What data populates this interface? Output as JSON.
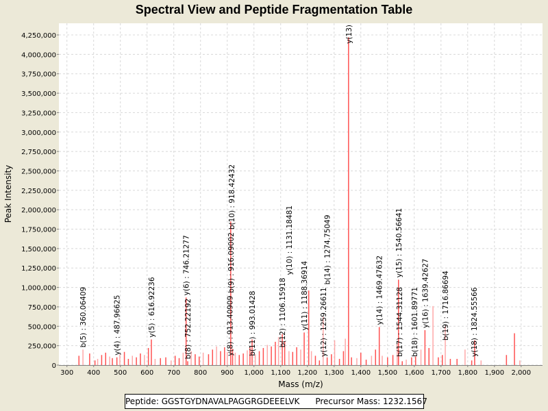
{
  "chart_data": {
    "type": "bar",
    "title": "Spectral View and Peptide Fragmentation Table",
    "xlabel": "Mass (m/z)",
    "ylabel": "Peak Intensity",
    "xlim": [
      270,
      2080
    ],
    "ylim": [
      0,
      4400000
    ],
    "x_ticks": [
      300,
      400,
      500,
      600,
      700,
      800,
      900,
      1000,
      1100,
      1200,
      1300,
      1400,
      1500,
      1600,
      1700,
      1800,
      1900,
      2000
    ],
    "x_tick_labels": [
      "300",
      "400",
      "500",
      "600",
      "700",
      "800",
      "900",
      "1,000",
      "1,100",
      "1,200",
      "1,300",
      "1,400",
      "1,500",
      "1,600",
      "1,700",
      "1,800",
      "1,900",
      "2,000"
    ],
    "y_ticks": [
      0,
      250000,
      500000,
      750000,
      1000000,
      1250000,
      1500000,
      1750000,
      2000000,
      2250000,
      2500000,
      2750000,
      3000000,
      3250000,
      3500000,
      3750000,
      4000000,
      4250000
    ],
    "y_tick_labels": [
      "0",
      "250,000",
      "500,000",
      "750,000",
      "1,000,000",
      "1,250,000",
      "1,500,000",
      "1,750,000",
      "2,000,000",
      "2,250,000",
      "2,500,000",
      "2,750,000",
      "3,000,000",
      "3,250,000",
      "3,500,000",
      "3,750,000",
      "4,000,000",
      "4,250,000"
    ],
    "grid": true,
    "peak_color": "#ff5050",
    "peak_color_light": "#ffa8a8",
    "peaks": [
      [
        345,
        120000
      ],
      [
        360,
        200000
      ],
      [
        385,
        150000
      ],
      [
        405,
        60000
      ],
      [
        415,
        80000
      ],
      [
        430,
        130000
      ],
      [
        445,
        160000
      ],
      [
        460,
        110000
      ],
      [
        470,
        90000
      ],
      [
        487,
        100000
      ],
      [
        498,
        140000
      ],
      [
        515,
        170000
      ],
      [
        530,
        80000
      ],
      [
        545,
        120000
      ],
      [
        560,
        100000
      ],
      [
        575,
        150000
      ],
      [
        590,
        130000
      ],
      [
        605,
        220000
      ],
      [
        616,
        330000
      ],
      [
        630,
        80000
      ],
      [
        650,
        90000
      ],
      [
        670,
        100000
      ],
      [
        690,
        60000
      ],
      [
        705,
        120000
      ],
      [
        720,
        90000
      ],
      [
        735,
        160000
      ],
      [
        746,
        870000
      ],
      [
        752,
        50000
      ],
      [
        765,
        180000
      ],
      [
        780,
        140000
      ],
      [
        795,
        110000
      ],
      [
        810,
        160000
      ],
      [
        830,
        140000
      ],
      [
        845,
        200000
      ],
      [
        860,
        240000
      ],
      [
        875,
        180000
      ],
      [
        890,
        230000
      ],
      [
        900,
        170000
      ],
      [
        913,
        1850000
      ],
      [
        920,
        210000
      ],
      [
        930,
        160000
      ],
      [
        945,
        130000
      ],
      [
        960,
        150000
      ],
      [
        975,
        190000
      ],
      [
        985,
        230000
      ],
      [
        993,
        330000
      ],
      [
        1005,
        140000
      ],
      [
        1020,
        180000
      ],
      [
        1035,
        220000
      ],
      [
        1050,
        260000
      ],
      [
        1065,
        240000
      ],
      [
        1080,
        300000
      ],
      [
        1092,
        360000
      ],
      [
        1106,
        400000
      ],
      [
        1115,
        310000
      ],
      [
        1131,
        180000
      ],
      [
        1145,
        170000
      ],
      [
        1160,
        230000
      ],
      [
        1175,
        200000
      ],
      [
        1188,
        420000
      ],
      [
        1205,
        960000
      ],
      [
        1215,
        180000
      ],
      [
        1230,
        120000
      ],
      [
        1245,
        60000
      ],
      [
        1259,
        620000
      ],
      [
        1274,
        100000
      ],
      [
        1290,
        140000
      ],
      [
        1302,
        320000
      ],
      [
        1320,
        80000
      ],
      [
        1335,
        180000
      ],
      [
        1342,
        340000
      ],
      [
        1354,
        4220000
      ],
      [
        1365,
        100000
      ],
      [
        1385,
        90000
      ],
      [
        1400,
        160000
      ],
      [
        1420,
        70000
      ],
      [
        1440,
        120000
      ],
      [
        1455,
        200000
      ],
      [
        1469,
        490000
      ],
      [
        1480,
        120000
      ],
      [
        1500,
        100000
      ],
      [
        1520,
        130000
      ],
      [
        1536,
        280000
      ],
      [
        1541,
        1100000
      ],
      [
        1555,
        50000
      ],
      [
        1570,
        70000
      ],
      [
        1590,
        100000
      ],
      [
        1605,
        110000
      ],
      [
        1625,
        200000
      ],
      [
        1640,
        450000
      ],
      [
        1655,
        220000
      ],
      [
        1670,
        760000
      ],
      [
        1690,
        100000
      ],
      [
        1705,
        130000
      ],
      [
        1716,
        500000
      ],
      [
        1735,
        80000
      ],
      [
        1760,
        80000
      ],
      [
        1790,
        200000
      ],
      [
        1815,
        60000
      ],
      [
        1826,
        320000
      ],
      [
        1850,
        60000
      ],
      [
        1945,
        130000
      ],
      [
        1975,
        410000
      ],
      [
        1995,
        60000
      ]
    ],
    "annotations": [
      {
        "label": "b(5) : 360.06409",
        "mz": 360,
        "intensity": 200000
      },
      {
        "label": "y(4) : 487.96625",
        "mz": 487,
        "intensity": 100000
      },
      {
        "label": "y(5) : 616.92236",
        "mz": 616,
        "intensity": 330000
      },
      {
        "label": "y(6) : 746.21277",
        "mz": 746,
        "intensity": 870000
      },
      {
        "label": "b(8) : 752.22192",
        "mz": 752,
        "intensity": 50000
      },
      {
        "label": "y(8) : 913.40909",
        "mz": 910,
        "intensity": 90000
      },
      {
        "label": "b(9) : 916.09002",
        "mz": 913,
        "intensity": 90000
      },
      {
        "label": "b(10) : 918.42432",
        "mz": 916,
        "intensity": 110000
      },
      {
        "label": "b(11) : 993.01428",
        "mz": 993,
        "intensity": 90000
      },
      {
        "label": "b(12) : 1106.15918",
        "mz": 1106,
        "intensity": 200000
      },
      {
        "label": "y(10) : 1131.18481",
        "mz": 1131,
        "intensity": 110000
      },
      {
        "label": "y(11) : 1188.36914",
        "mz": 1188,
        "intensity": 420000
      },
      {
        "label": "y(12) : 1259.26611",
        "mz": 1259,
        "intensity": 80000
      },
      {
        "label": "b(14) : 1274.75049",
        "mz": 1274,
        "intensity": 50000
      },
      {
        "label": "y(13)",
        "mz": 1354,
        "intensity": 4220000
      },
      {
        "label": "y(14) : 1469.47632",
        "mz": 1469,
        "intensity": 490000
      },
      {
        "label": "b(17) : 1544.31128",
        "mz": 1544,
        "intensity": 80000
      },
      {
        "label": "y(15) : 1540.56641",
        "mz": 1541,
        "intensity": 1100000
      },
      {
        "label": "b(18) : 1601.89771",
        "mz": 1601,
        "intensity": 80000
      },
      {
        "label": "y(16) : 1639.42627",
        "mz": 1640,
        "intensity": 450000
      },
      {
        "label": "b(19) : 1716.86694",
        "mz": 1716,
        "intensity": 290000
      },
      {
        "label": "y(18) : 1824.55566",
        "mz": 1824,
        "intensity": 80000
      }
    ]
  },
  "footer": {
    "peptide_label": "Peptide: GGSTGYDNAVALPAGGRGDEEELVK",
    "precursor_label": "Precursor Mass: 1232.1567"
  }
}
